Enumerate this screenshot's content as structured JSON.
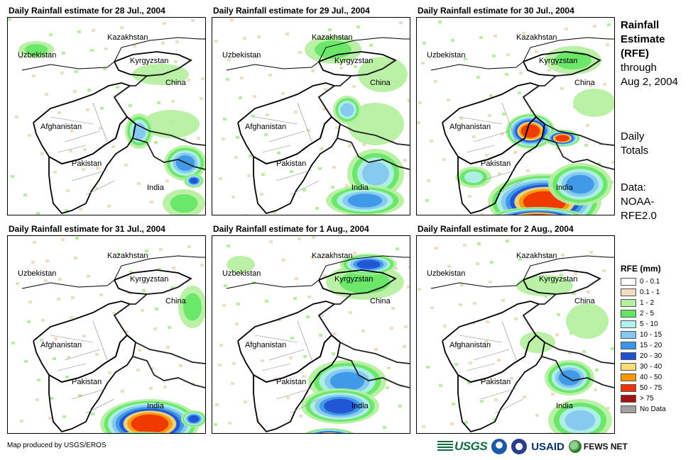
{
  "panels": [
    {
      "title": "Daily Rainfall estimate for 28 Jul., 2004",
      "date": "2004-07-28"
    },
    {
      "title": "Daily Rainfall estimate for 29 Jul., 2004",
      "date": "2004-07-29"
    },
    {
      "title": "Daily Rainfall estimate for 30 Jul., 2004",
      "date": "2004-07-30"
    },
    {
      "title": "Daily Rainfall estimate for 31 Jul., 2004",
      "date": "2004-07-31"
    },
    {
      "title": "Daily Rainfall estimate for 1 Aug., 2004",
      "date": "2004-08-01"
    },
    {
      "title": "Daily Rainfall estimate for 2 Aug., 2004",
      "date": "2004-08-02"
    }
  ],
  "map_labels": {
    "kazakhstan": "Kazakhstan",
    "uzbekistan": "Uzbekistan",
    "kyrgyzstan": "Kyrgyzstan",
    "china": "China",
    "afghanistan": "Afghanistan",
    "pakistan": "Pakistan",
    "india": "India"
  },
  "side": {
    "title_line1": "Rainfall",
    "title_line2": "Estimate",
    "title_line3": "(RFE)",
    "through": "through",
    "through_date": "Aug 2, 2004",
    "totals_line1": "Daily",
    "totals_line2": "Totals",
    "data_line1": "Data:",
    "data_line2": "NOAA-",
    "data_line3": "RFE2.0"
  },
  "legend": {
    "title": "RFE (mm)",
    "items": [
      {
        "label": "0 - 0.1",
        "color": "#ffffff"
      },
      {
        "label": "0.1 - 1",
        "color": "#f0dcc0"
      },
      {
        "label": "1 - 2",
        "color": "#b4f0a0"
      },
      {
        "label": "2 - 5",
        "color": "#64e664"
      },
      {
        "label": "5 - 10",
        "color": "#b4f0f0"
      },
      {
        "label": "10 - 15",
        "color": "#82c8f0"
      },
      {
        "label": "15 - 20",
        "color": "#3c96e6"
      },
      {
        "label": "20 - 30",
        "color": "#1e50d2"
      },
      {
        "label": "30 - 40",
        "color": "#fadc78"
      },
      {
        "label": "40 - 50",
        "color": "#fa9600"
      },
      {
        "label": "50 - 75",
        "color": "#f03200"
      },
      {
        "label": "> 75",
        "color": "#a01414"
      },
      {
        "label": "No Data",
        "color": "#a0a0a0"
      }
    ]
  },
  "credit": "Map produced by USGS/EROS",
  "logos": {
    "usgs": "USGS",
    "usaid": "USAID",
    "fews": "FEWS NET"
  }
}
